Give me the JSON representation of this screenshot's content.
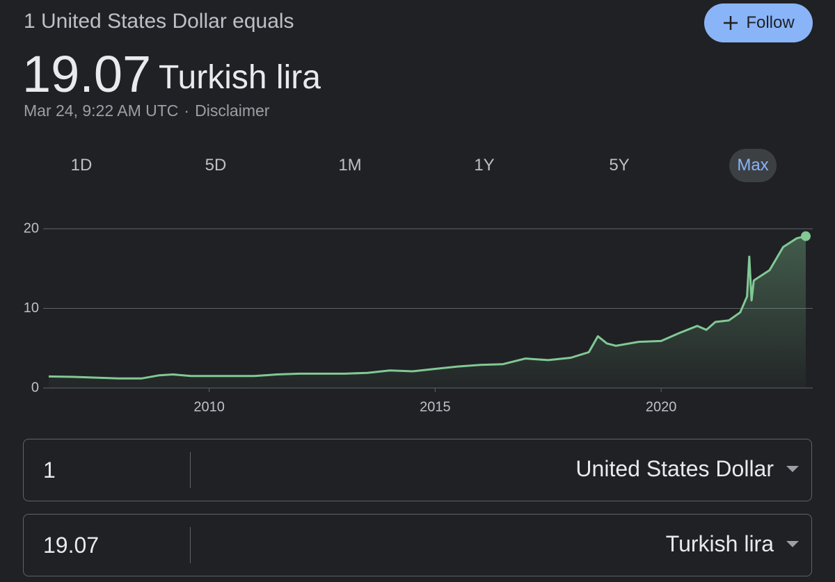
{
  "header": {
    "subtitle": "1 United States Dollar equals",
    "value": "19.07",
    "unit": "Turkish lira",
    "timestamp": "Mar 24, 9:22 AM UTC",
    "separator": "·",
    "disclaimer": "Disclaimer"
  },
  "follow_button": "Follow",
  "ranges": {
    "options": [
      "1D",
      "5D",
      "1M",
      "1Y",
      "5Y",
      "Max"
    ],
    "selected": 5
  },
  "chart_data": {
    "type": "line",
    "x": [
      2006.45,
      2007,
      2007.5,
      2008,
      2008.5,
      2008.9,
      2009.2,
      2009.6,
      2010,
      2010.5,
      2011,
      2011.5,
      2012,
      2012.5,
      2013,
      2013.5,
      2014,
      2014.5,
      2015,
      2015.5,
      2016,
      2016.5,
      2017,
      2017.5,
      2018,
      2018.4,
      2018.6,
      2018.8,
      2019,
      2019.5,
      2020,
      2020.4,
      2020.8,
      2021,
      2021.2,
      2021.5,
      2021.75,
      2021.9,
      2021.95,
      2022,
      2022.05,
      2022.4,
      2022.7,
      2023,
      2023.2
    ],
    "series": [
      {
        "color": "#81c995",
        "values": [
          1.45,
          1.4,
          1.3,
          1.2,
          1.2,
          1.6,
          1.7,
          1.5,
          1.5,
          1.5,
          1.5,
          1.7,
          1.8,
          1.8,
          1.8,
          1.9,
          2.2,
          2.1,
          2.4,
          2.7,
          2.9,
          3.0,
          3.7,
          3.5,
          3.8,
          4.5,
          6.5,
          5.6,
          5.3,
          5.8,
          5.9,
          6.9,
          7.8,
          7.3,
          8.3,
          8.5,
          9.5,
          11.5,
          16.5,
          11,
          13.5,
          14.8,
          17.7,
          18.8,
          19.07
        ]
      }
    ],
    "xlim": [
      2006.45,
      2023.2
    ],
    "ylim": [
      0,
      20
    ],
    "xticks": [
      2010,
      2015,
      2020
    ],
    "yticks": [
      0,
      10,
      20
    ],
    "grid": true
  },
  "converter": {
    "from": {
      "amount": "1",
      "currency": "United States Dollar"
    },
    "to": {
      "amount": "19.07",
      "currency": "Turkish lira"
    }
  }
}
